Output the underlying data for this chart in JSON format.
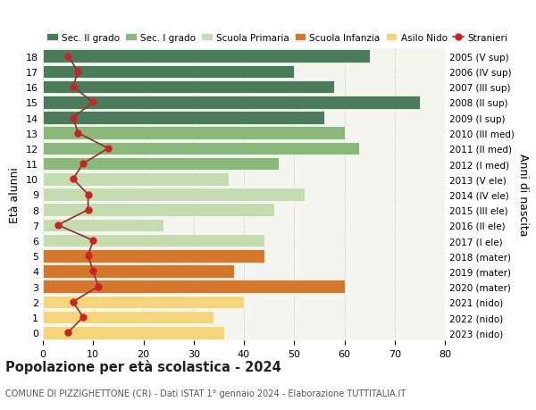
{
  "ages": [
    18,
    17,
    16,
    15,
    14,
    13,
    12,
    11,
    10,
    9,
    8,
    7,
    6,
    5,
    4,
    3,
    2,
    1,
    0
  ],
  "years": [
    "2005 (V sup)",
    "2006 (IV sup)",
    "2007 (III sup)",
    "2008 (II sup)",
    "2009 (I sup)",
    "2010 (III med)",
    "2011 (II med)",
    "2012 (I med)",
    "2013 (V ele)",
    "2014 (IV ele)",
    "2015 (III ele)",
    "2016 (II ele)",
    "2017 (I ele)",
    "2018 (mater)",
    "2019 (mater)",
    "2020 (mater)",
    "2021 (nido)",
    "2022 (nido)",
    "2023 (nido)"
  ],
  "bar_values": [
    65,
    50,
    58,
    75,
    56,
    60,
    63,
    47,
    37,
    52,
    46,
    24,
    44,
    44,
    38,
    60,
    40,
    34,
    36
  ],
  "stranieri": [
    5,
    7,
    6,
    10,
    6,
    7,
    13,
    8,
    6,
    9,
    9,
    3,
    10,
    9,
    10,
    11,
    6,
    8,
    5
  ],
  "bar_colors": [
    "#4a7c59",
    "#4a7c59",
    "#4a7c59",
    "#4a7c59",
    "#4a7c59",
    "#8ab87a",
    "#8ab87a",
    "#8ab87a",
    "#c5dbb0",
    "#c5dbb0",
    "#c5dbb0",
    "#c5dbb0",
    "#c5dbb0",
    "#d4772a",
    "#d4772a",
    "#d4772a",
    "#f5d57a",
    "#f5d57a",
    "#f5d57a"
  ],
  "legend_labels": [
    "Sec. II grado",
    "Sec. I grado",
    "Scuola Primaria",
    "Scuola Infanzia",
    "Asilo Nido",
    "Stranieri"
  ],
  "legend_colors": [
    "#4a7c59",
    "#8ab87a",
    "#c5dbb0",
    "#d4772a",
    "#f5d57a",
    "#cc2222"
  ],
  "stranieri_color": "#cc2222",
  "stranieri_line_color": "#8b3030",
  "title": "Popolazione per età scolastica - 2024",
  "subtitle": "COMUNE DI PIZZIGHETTONE (CR) - Dati ISTAT 1° gennaio 2024 - Elaborazione TUTTITALIA.IT",
  "ylabel_left": "Età alunni",
  "ylabel_right": "Anni di nascita",
  "xlim": [
    0,
    80
  ],
  "background_color": "#ffffff",
  "plot_bg_color": "#f5f5f0"
}
